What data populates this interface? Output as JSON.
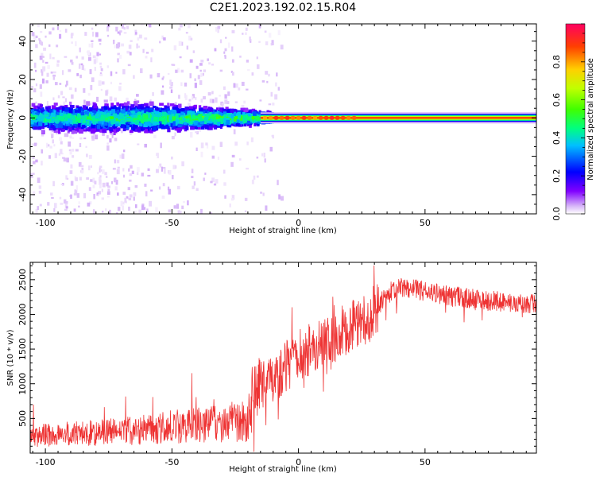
{
  "figure": {
    "title": "C2E1.2023.192.02.15.R04"
  },
  "chart_data": [
    {
      "type": "heatmap",
      "xlabel": "Height of straight line (km)",
      "ylabel": "Frequency (Hz)",
      "xlim": [
        -106,
        94
      ],
      "ylim": [
        -50,
        49
      ],
      "xticks": [
        -100,
        -50,
        0,
        50
      ],
      "yticks": [
        -40,
        -20,
        0,
        20,
        40
      ],
      "colorbar": {
        "label": "Normalized spectral amplitude",
        "ticks": [
          0.0,
          0.2,
          0.4,
          0.6,
          0.8
        ],
        "range": [
          0,
          1
        ],
        "colormap": [
          "#ffffff",
          "#d8b8f8",
          "#8000ff",
          "#0000ff",
          "#00c0ff",
          "#00ff80",
          "#40ff00",
          "#c0ff00",
          "#ffd000",
          "#ff4000",
          "#ff0060"
        ]
      },
      "features": {
        "broadband_region_km": [
          -106,
          -15
        ],
        "broadband_halfwidth_hz": 8,
        "narrowband_region_km": [
          -15,
          94
        ],
        "narrowband_center_hz": 0,
        "narrowband_peak_amplitude": 0.9
      }
    },
    {
      "type": "line",
      "xlabel": "Height of straight line (km)",
      "ylabel": "SNR (10 * v/v)",
      "xlim": [
        -106,
        94
      ],
      "ylim": [
        0,
        2750
      ],
      "xticks": [
        -100,
        -50,
        0,
        50
      ],
      "yticks": [
        500,
        1000,
        1500,
        2000,
        2500
      ],
      "series": [
        {
          "color": "#ee3333",
          "x": [
            -106,
            -100,
            -90,
            -80,
            -70,
            -60,
            -50,
            -40,
            -30,
            -25,
            -20,
            -18,
            -15,
            -10,
            -5,
            0,
            5,
            10,
            15,
            20,
            25,
            30,
            35,
            40,
            45,
            50,
            55,
            60,
            65,
            70,
            75,
            80,
            85,
            90,
            94
          ],
          "y": [
            230,
            260,
            280,
            290,
            320,
            340,
            380,
            400,
            430,
            460,
            450,
            950,
            1000,
            1080,
            1250,
            1400,
            1500,
            1600,
            1700,
            1800,
            1900,
            2050,
            2300,
            2380,
            2370,
            2330,
            2300,
            2260,
            2240,
            2220,
            2200,
            2180,
            2170,
            2150,
            2150
          ]
        }
      ]
    }
  ]
}
